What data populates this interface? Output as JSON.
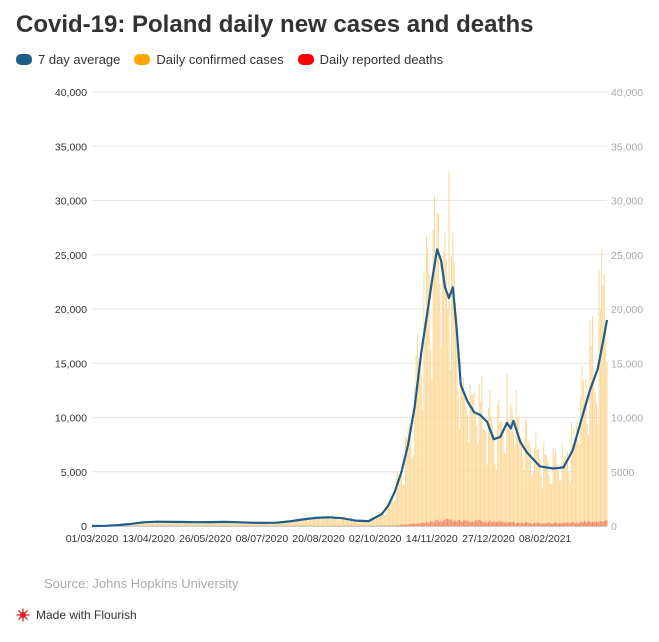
{
  "title": "Covid-19: Poland daily new cases and deaths",
  "legend": {
    "avg": "7 day average",
    "cases": "Daily confirmed cases",
    "deaths": "Daily reported deaths"
  },
  "colors": {
    "avg": "#1f5e8a",
    "cases": "#ffa500",
    "deaths": "#ff0000",
    "cases_bar": "#fcd99a",
    "deaths_bar": "#f4866a"
  },
  "footer": {
    "source": "Source: Johns Hopkins University",
    "made_with": "Made with Flourish"
  },
  "icons": {
    "flourish": "flourish-logo-icon"
  },
  "chart_data": {
    "type": "bar-line",
    "title": "Covid-19: Poland daily new cases and deaths",
    "x_start": "01/03/2020",
    "x_end": "27/03/2021",
    "ylim": [
      0,
      40000
    ],
    "y_ticks_left": [
      "40,000",
      "35,000",
      "30,000",
      "25,000",
      "20,000",
      "15,000",
      "10,000",
      "5,000",
      "0"
    ],
    "y_ticks_right": [
      "40,000",
      "35,000",
      "30,000",
      "25,000",
      "20,000",
      "15,000",
      "10,000",
      "5000",
      "0"
    ],
    "y_tick_values": [
      40000,
      35000,
      30000,
      25000,
      20000,
      15000,
      10000,
      5000,
      0
    ],
    "x_ticks": [
      {
        "label": "01/03/2020",
        "day": 0
      },
      {
        "label": "13/04/2020",
        "day": 43
      },
      {
        "label": "26/05/2020",
        "day": 86
      },
      {
        "label": "08/07/2020",
        "day": 129
      },
      {
        "label": "20/08/2020",
        "day": 172
      },
      {
        "label": "02/10/2020",
        "day": 215
      },
      {
        "label": "14/11/2020",
        "day": 258
      },
      {
        "label": "27/12/2020",
        "day": 301
      },
      {
        "label": "08/02/2021",
        "day": 344
      }
    ],
    "x_max_day": 391,
    "series": [
      {
        "name": "7 day average",
        "type": "line",
        "points": [
          [
            0,
            0
          ],
          [
            10,
            20
          ],
          [
            20,
            80
          ],
          [
            30,
            200
          ],
          [
            40,
            350
          ],
          [
            50,
            400
          ],
          [
            60,
            380
          ],
          [
            70,
            370
          ],
          [
            80,
            350
          ],
          [
            90,
            360
          ],
          [
            100,
            380
          ],
          [
            110,
            350
          ],
          [
            120,
            300
          ],
          [
            130,
            290
          ],
          [
            140,
            300
          ],
          [
            150,
            420
          ],
          [
            160,
            600
          ],
          [
            170,
            750
          ],
          [
            180,
            800
          ],
          [
            190,
            720
          ],
          [
            200,
            500
          ],
          [
            210,
            450
          ],
          [
            220,
            1100
          ],
          [
            225,
            1900
          ],
          [
            230,
            3200
          ],
          [
            235,
            5000
          ],
          [
            240,
            7500
          ],
          [
            245,
            11000
          ],
          [
            250,
            16000
          ],
          [
            255,
            20000
          ],
          [
            258,
            22500
          ],
          [
            262,
            25500
          ],
          [
            265,
            24500
          ],
          [
            268,
            22000
          ],
          [
            271,
            21000
          ],
          [
            274,
            22000
          ],
          [
            277,
            18000
          ],
          [
            280,
            13000
          ],
          [
            285,
            11500
          ],
          [
            290,
            10500
          ],
          [
            295,
            10200
          ],
          [
            300,
            9600
          ],
          [
            305,
            8000
          ],
          [
            310,
            8200
          ],
          [
            315,
            9500
          ],
          [
            318,
            9000
          ],
          [
            320,
            9700
          ],
          [
            325,
            7800
          ],
          [
            330,
            6800
          ],
          [
            340,
            5500
          ],
          [
            350,
            5300
          ],
          [
            358,
            5400
          ],
          [
            365,
            7000
          ],
          [
            372,
            10000
          ],
          [
            378,
            12500
          ],
          [
            384,
            14500
          ],
          [
            388,
            17000
          ],
          [
            391,
            19000
          ]
        ]
      },
      {
        "name": "Daily confirmed cases",
        "type": "bar",
        "anchors": [
          [
            0,
            0
          ],
          [
            10,
            30
          ],
          [
            20,
            100
          ],
          [
            30,
            220
          ],
          [
            40,
            380
          ],
          [
            50,
            420
          ],
          [
            60,
            400
          ],
          [
            70,
            390
          ],
          [
            80,
            370
          ],
          [
            90,
            380
          ],
          [
            100,
            400
          ],
          [
            110,
            370
          ],
          [
            120,
            320
          ],
          [
            130,
            300
          ],
          [
            140,
            320
          ],
          [
            150,
            450
          ],
          [
            160,
            650
          ],
          [
            170,
            800
          ],
          [
            180,
            850
          ],
          [
            190,
            760
          ],
          [
            200,
            520
          ],
          [
            210,
            480
          ],
          [
            220,
            1150
          ],
          [
            225,
            2000
          ],
          [
            230,
            3400
          ],
          [
            235,
            5300
          ],
          [
            240,
            8000
          ],
          [
            245,
            11800
          ],
          [
            250,
            17500
          ],
          [
            255,
            22000
          ],
          [
            258,
            24500
          ],
          [
            262,
            27800
          ],
          [
            265,
            26500
          ],
          [
            268,
            24000
          ],
          [
            271,
            22500
          ],
          [
            274,
            24000
          ],
          [
            277,
            19500
          ],
          [
            280,
            14000
          ],
          [
            285,
            12500
          ],
          [
            290,
            11500
          ],
          [
            295,
            11000
          ],
          [
            300,
            10500
          ],
          [
            305,
            8800
          ],
          [
            310,
            9000
          ],
          [
            315,
            10500
          ],
          [
            318,
            9900
          ],
          [
            320,
            10800
          ],
          [
            325,
            8600
          ],
          [
            330,
            7500
          ],
          [
            340,
            6100
          ],
          [
            350,
            5900
          ],
          [
            358,
            6000
          ],
          [
            365,
            7800
          ],
          [
            372,
            11500
          ],
          [
            378,
            14500
          ],
          [
            384,
            17500
          ],
          [
            388,
            21000
          ],
          [
            391,
            27200
          ]
        ],
        "spike": {
          "day": 271,
          "value": 32733
        }
      },
      {
        "name": "Daily reported deaths",
        "type": "bar",
        "anchors": [
          [
            0,
            0
          ],
          [
            60,
            15
          ],
          [
            120,
            10
          ],
          [
            180,
            12
          ],
          [
            215,
            20
          ],
          [
            230,
            60
          ],
          [
            245,
            200
          ],
          [
            258,
            400
          ],
          [
            265,
            520
          ],
          [
            275,
            560
          ],
          [
            290,
            450
          ],
          [
            310,
            380
          ],
          [
            330,
            300
          ],
          [
            350,
            260
          ],
          [
            370,
            350
          ],
          [
            391,
            500
          ]
        ]
      }
    ]
  }
}
